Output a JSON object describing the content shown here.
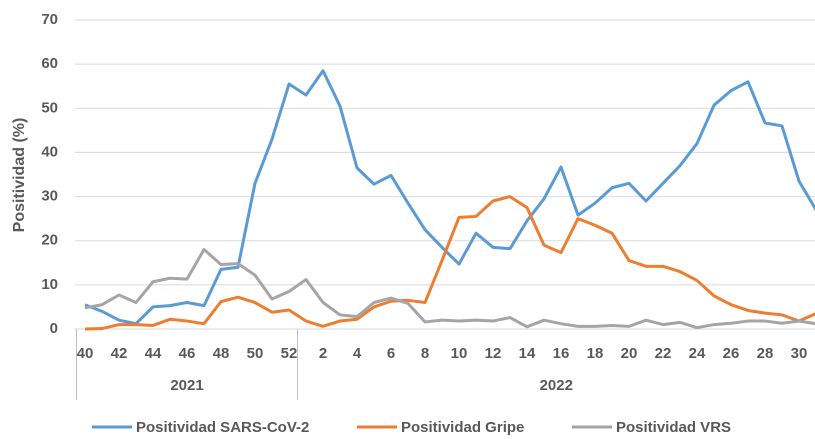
{
  "chart_data": {
    "type": "line",
    "y_label": "Positividad (%)",
    "ylim": [
      0,
      70
    ],
    "yticks": [
      0,
      10,
      20,
      30,
      40,
      50,
      60,
      70
    ],
    "grid": true,
    "legend": "bottom",
    "groups": [
      {
        "label": "2021",
        "categories": [
          "40",
          null,
          "42",
          null,
          "44",
          null,
          "46",
          null,
          "48",
          null,
          "50",
          null,
          "52"
        ]
      },
      {
        "label": "2022",
        "categories": [
          null,
          "2",
          null,
          "4",
          null,
          "6",
          null,
          "8",
          null,
          "10",
          null,
          "12",
          null,
          "14",
          null,
          "16",
          null,
          "18",
          null,
          "20",
          null,
          "22",
          null,
          "24",
          null,
          "26",
          null,
          "28",
          null,
          "30",
          null
        ]
      }
    ],
    "series": [
      {
        "name": "Positividad SARS-CoV-2",
        "color": "#5b9bd5",
        "values": [
          5.5,
          4,
          2,
          1.2,
          5,
          5.3,
          6,
          5.3,
          13.5,
          14,
          33,
          43,
          55.5,
          53,
          58.5,
          50.5,
          36.5,
          32.8,
          34.8,
          28.5,
          22.5,
          18.5,
          14.7,
          21.7,
          18.5,
          18.2,
          24.5,
          29.5,
          36.7,
          25.8,
          28.5,
          32,
          33,
          29,
          33,
          37,
          42,
          50.7,
          54,
          56,
          46.7,
          46,
          33.5,
          27
        ]
      },
      {
        "name": "Positividad Gripe",
        "color": "#ed7d31",
        "values": [
          0,
          0.1,
          1,
          1,
          0.8,
          2.2,
          1.8,
          1.2,
          6.2,
          7.2,
          6,
          3.8,
          4.3,
          1.8,
          0.6,
          1.8,
          2.2,
          5,
          6.3,
          6.5,
          6,
          15.5,
          25.3,
          25.5,
          29,
          30,
          27.5,
          19,
          17.3,
          25,
          23.5,
          21.7,
          15.5,
          14.2,
          14.2,
          13,
          11,
          7.5,
          5.5,
          4.2,
          3.6,
          3.2,
          1.8,
          3.5
        ]
      },
      {
        "name": "Positividad VRS",
        "color": "#a5a5a5",
        "values": [
          4.8,
          5.5,
          7.7,
          6,
          10.7,
          11.5,
          11.3,
          18,
          14.6,
          14.8,
          12.2,
          6.8,
          8.5,
          11.2,
          6,
          3.2,
          2.8,
          6,
          7,
          5.8,
          1.6,
          2,
          1.8,
          2,
          1.8,
          2.6,
          0.5,
          2,
          1.2,
          0.6,
          0.6,
          0.8,
          0.6,
          2,
          1,
          1.5,
          0.3,
          1,
          1.3,
          1.8,
          1.8,
          1.3,
          1.8,
          1.2
        ]
      }
    ]
  }
}
